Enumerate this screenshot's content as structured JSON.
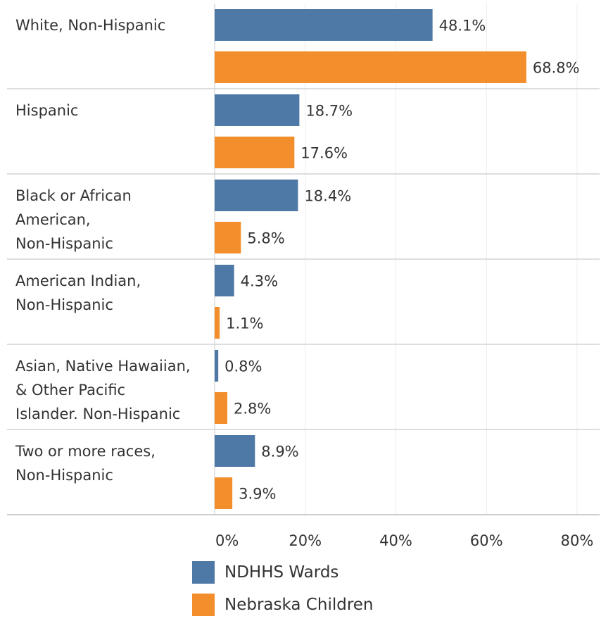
{
  "chart_data": {
    "type": "bar",
    "orientation": "horizontal",
    "categories": [
      "White, Non-Hispanic",
      "Hispanic",
      "Black or African American, Non-Hispanic",
      "American Indian, Non-Hispanic",
      "Asian, Native Hawaiian, & Other Pacific Islander. Non-Hispanic",
      "Two or more races, Non-Hispanic"
    ],
    "category_lines": [
      [
        "White, Non-Hispanic"
      ],
      [
        "Hispanic"
      ],
      [
        "Black or African",
        "American,",
        "Non-Hispanic"
      ],
      [
        "American Indian,",
        "Non-Hispanic"
      ],
      [
        "Asian, Native Hawaiian,",
        "& Other Pacific",
        "Islander. Non-Hispanic"
      ],
      [
        "Two or more races,",
        "Non-Hispanic"
      ]
    ],
    "series": [
      {
        "name": "NDHHS Wards",
        "color": "#4e79a7",
        "values": [
          48.1,
          18.7,
          18.4,
          4.3,
          0.8,
          8.9
        ]
      },
      {
        "name": "Nebraska Children",
        "color": "#f28e2b",
        "values": [
          68.8,
          17.6,
          5.8,
          1.1,
          2.8,
          3.9
        ]
      }
    ],
    "xlim": [
      0,
      80
    ],
    "x_ticks": [
      0,
      20,
      40,
      60,
      80
    ],
    "x_tick_labels": [
      "0%",
      "20%",
      "40%",
      "60%",
      "80%"
    ],
    "value_format": "percent_1dp",
    "grid": true,
    "legend": "bottom"
  }
}
